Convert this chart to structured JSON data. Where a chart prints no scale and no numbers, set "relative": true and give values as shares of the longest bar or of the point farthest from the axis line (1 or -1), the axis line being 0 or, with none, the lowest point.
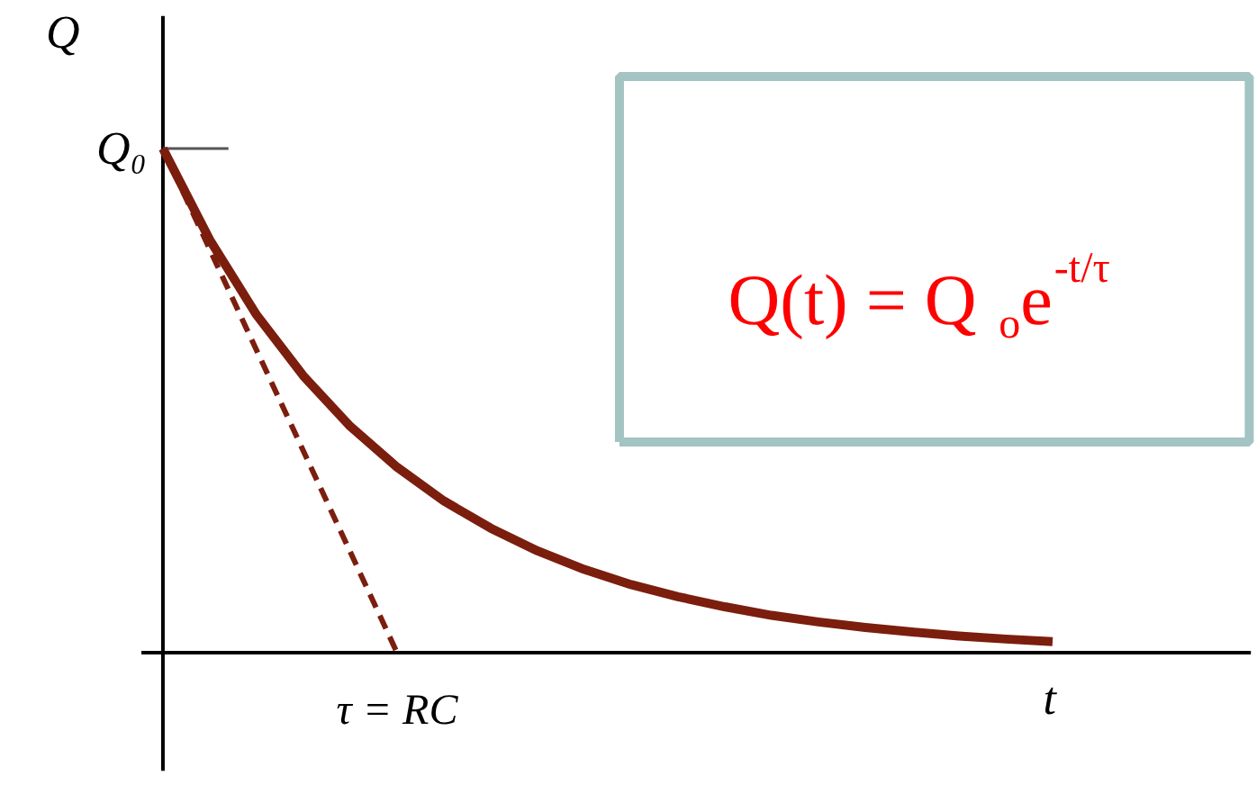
{
  "chart_data": {
    "type": "line",
    "relative": true,
    "xlabel": "t",
    "ylabel": "Q",
    "categories": [
      null,
      null,
      null,
      null,
      null,
      null,
      null,
      null,
      null,
      null,
      null,
      null,
      null,
      null,
      null,
      null,
      null,
      null,
      null,
      null
    ],
    "series": [
      {
        "color": "#7b1e0e",
        "values": [
          1,
          0.819,
          0.67,
          0.549,
          0.449,
          0.368,
          0.301,
          0.247,
          0.202,
          0.165,
          0.135,
          0.111,
          0.091,
          0.074,
          0.061,
          0.05,
          0.041,
          0.033,
          0.027,
          0.022
        ]
      },
      {
        "line_style": "dashed",
        "color": "#7b1e0e",
        "values": [
          1,
          0.8,
          0.6,
          0.4,
          0.2,
          0,
          null,
          null,
          null,
          null,
          null,
          null,
          null,
          null,
          null,
          null,
          null,
          null,
          null,
          null
        ]
      }
    ],
    "annotations": [
      "Q₀",
      "τ = RC",
      "Q(t) = Q$_{o}$e$^{-t/τ}$"
    ]
  }
}
